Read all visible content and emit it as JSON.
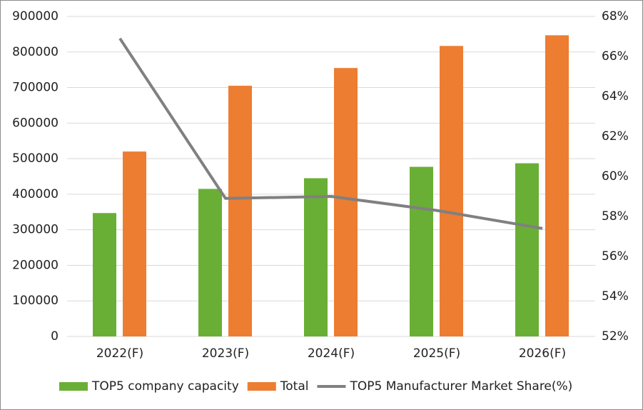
{
  "chart_data": {
    "type": "bar_line",
    "categories": [
      "2022(F)",
      "2023(F)",
      "2024(F)",
      "2025(F)",
      "2026(F)"
    ],
    "series": [
      {
        "name": "TOP5 company capacity",
        "color": "#6aaf35",
        "type": "bar",
        "values": [
          347000,
          415000,
          445000,
          477000,
          487000
        ]
      },
      {
        "name": "Total",
        "color": "#ed7d31",
        "type": "bar",
        "values": [
          520000,
          705000,
          755000,
          817000,
          847000
        ]
      },
      {
        "name": "TOP5 Manufacturer Market Share(%)",
        "color": "#808080",
        "type": "line",
        "axis": "y2",
        "values": [
          66.9,
          58.9,
          59.0,
          58.3,
          57.4
        ]
      }
    ],
    "ylim": [
      0,
      900000
    ],
    "yticks": [
      0,
      100000,
      200000,
      300000,
      400000,
      500000,
      600000,
      700000,
      800000,
      900000
    ],
    "y2lim": [
      52,
      68
    ],
    "y2ticks": [
      {
        "value": 52,
        "label": "52%"
      },
      {
        "value": 54,
        "label": "54%"
      },
      {
        "value": 56,
        "label": "56%"
      },
      {
        "value": 58,
        "label": "58%"
      },
      {
        "value": 60,
        "label": "60%"
      },
      {
        "value": 62,
        "label": "62%"
      },
      {
        "value": 64,
        "label": "64%"
      },
      {
        "value": 66,
        "label": "66%"
      },
      {
        "value": 68,
        "label": "68%"
      }
    ],
    "grid": true,
    "legend": "bottom"
  }
}
